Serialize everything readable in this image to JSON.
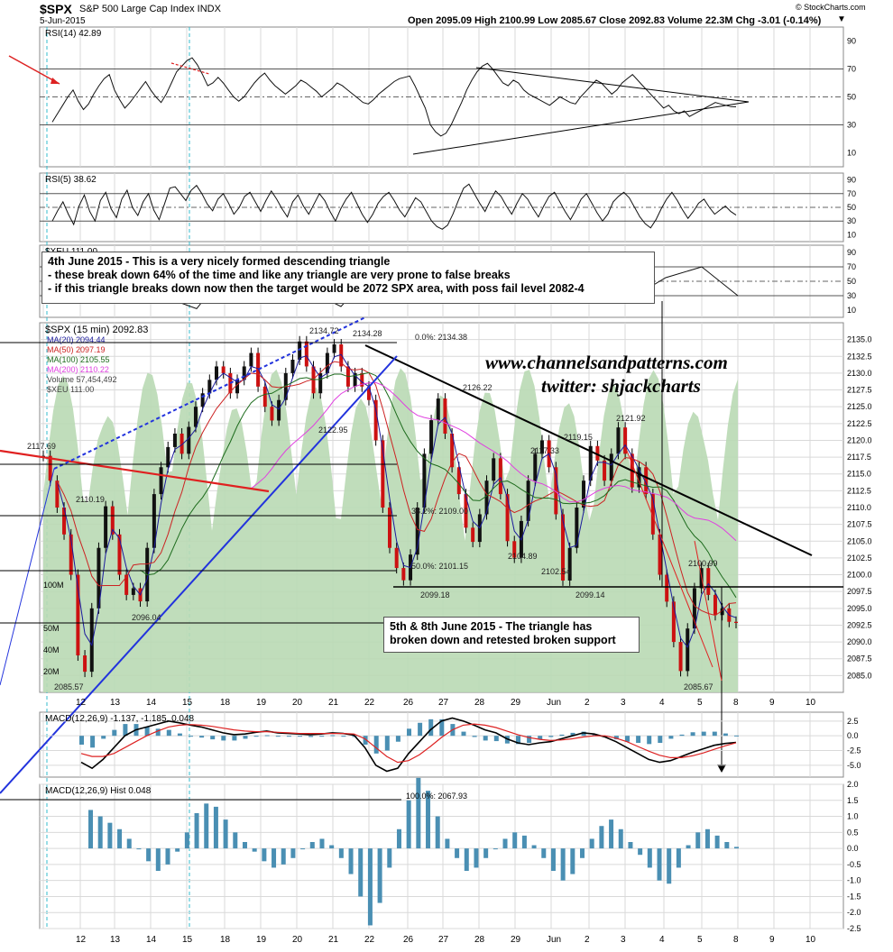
{
  "header": {
    "symbol": "$SPX",
    "name": "S&P 500 Large Cap Index INDX",
    "date": "5-Jun-2015",
    "quote": "Open 2095.09  High 2100.99  Low 2085.67  Close 2092.83  Volume 22.3M  Chg -3.01 (-0.14%)",
    "credit": "© StockCharts.com"
  },
  "watermark": {
    "site": "www.channelsandpatterns.com",
    "twitter": "twitter: shjackcharts"
  },
  "notes": {
    "top": {
      "line1": "4th June 2015 - This is a very nicely formed descending triangle",
      "line2": "- these break down 64% of the time and like any triangle are very prone to false breaks",
      "line3": "- if this triangle breaks down now then the target would be 2072 SPX area, with poss fail level 2082-4"
    },
    "bottom": {
      "line1": "5th & 8th June 2015 - The triangle has",
      "line2": "broken down and retested broken support"
    }
  },
  "colors": {
    "grid": "#d9d9d9",
    "panel_border": "#888888",
    "volume_fill": "#b9d9b4",
    "ma20": "#1a1a9c",
    "ma50": "#cc2222",
    "ma100": "#1d6b1d",
    "ma200": "#e040e0",
    "macd_hist": "#4a8fb3",
    "dashed_cyan": "#33bbcc"
  },
  "chart_data": [
    {
      "id": "rsi14",
      "type": "line",
      "title": "RSI(14) 42.89",
      "ylim": [
        0,
        100
      ],
      "y_ticks": [
        "10",
        "30",
        "50",
        "70",
        "90"
      ],
      "reference_lines": [
        30,
        50,
        70
      ],
      "last": 42.89,
      "values": [
        32,
        38,
        44,
        50,
        55,
        47,
        41,
        45,
        52,
        58,
        63,
        66,
        55,
        48,
        42,
        46,
        51,
        56,
        61,
        55,
        50,
        46,
        52,
        60,
        68,
        72,
        76,
        78,
        73,
        66,
        58,
        60,
        64,
        60,
        55,
        50,
        47,
        50,
        55,
        60,
        64,
        67,
        62,
        58,
        55,
        52,
        55,
        58,
        62,
        60,
        57,
        54,
        50,
        53,
        56,
        60,
        58,
        55,
        52,
        49,
        46,
        45,
        48,
        52,
        55,
        58,
        61,
        63,
        64,
        65,
        58,
        50,
        42,
        30,
        25,
        22,
        24,
        30,
        38,
        46,
        55,
        62,
        68,
        72,
        74,
        70,
        65,
        60,
        58,
        62,
        60,
        55,
        52,
        50,
        48,
        46,
        44,
        47,
        50,
        48,
        46,
        45,
        50,
        54,
        58,
        62,
        60,
        56,
        52,
        55,
        60,
        63,
        66,
        62,
        58,
        54,
        50,
        46,
        42,
        44,
        40,
        38,
        40,
        36,
        38,
        40,
        42,
        44,
        46,
        45,
        44,
        43,
        42.89
      ]
    },
    {
      "id": "rsi5",
      "type": "line",
      "title": "RSI(5) 38.62",
      "ylim": [
        0,
        100
      ],
      "y_ticks": [
        "10",
        "30",
        "50",
        "70",
        "90"
      ],
      "reference_lines": [
        30,
        50,
        70
      ],
      "last": 38.62,
      "values": [
        30,
        45,
        58,
        40,
        25,
        52,
        68,
        44,
        30,
        60,
        72,
        48,
        35,
        62,
        75,
        50,
        38,
        58,
        70,
        46,
        32,
        55,
        78,
        80,
        70,
        60,
        75,
        82,
        70,
        55,
        45,
        62,
        70,
        56,
        40,
        50,
        66,
        72,
        58,
        44,
        60,
        74,
        62,
        48,
        36,
        58,
        68,
        52,
        40,
        55,
        70,
        60,
        44,
        30,
        48,
        62,
        72,
        56,
        40,
        28,
        40,
        56,
        66,
        72,
        60,
        46,
        36,
        50,
        64,
        58,
        44,
        30,
        22,
        18,
        24,
        40,
        60,
        78,
        84,
        70,
        56,
        44,
        60,
        74,
        66,
        52,
        40,
        56,
        70,
        62,
        48,
        36,
        52,
        66,
        72,
        58,
        44,
        32,
        46,
        62,
        70,
        56,
        42,
        30,
        40,
        58,
        66,
        72,
        64,
        50,
        36,
        26,
        20,
        32,
        48,
        62,
        72,
        60,
        46,
        34,
        44,
        56,
        62,
        50,
        40,
        46,
        52,
        44,
        38.62
      ]
    },
    {
      "id": "xeu",
      "type": "line",
      "title": "$XEU 111.00",
      "ylim": [
        0,
        100
      ],
      "y_ticks": [
        "10",
        "30",
        "50",
        "70",
        "90"
      ],
      "reference_lines": [
        30,
        50,
        70
      ],
      "values": [
        20,
        60,
        88,
        30,
        12,
        75,
        90,
        40,
        15,
        70,
        85,
        35,
        20,
        65,
        80,
        45,
        25,
        55,
        70,
        30
      ]
    },
    {
      "id": "price",
      "type": "line",
      "title": "$SPX (15 min) 2092.83",
      "legend": [
        "MA(20) 2094.44",
        "MA(50) 2097.19",
        "MA(100) 2105.55",
        "MA(200) 2110.22",
        "Volume 57,454,492",
        "$XEU 111.00"
      ],
      "ylim": [
        2082.5,
        2137.5
      ],
      "y_ticks": [
        "2085.0",
        "2087.5",
        "2090.0",
        "2092.5",
        "2095.0",
        "2097.5",
        "2100.0",
        "2102.5",
        "2105.0",
        "2107.5",
        "2110.0",
        "2112.5",
        "2115.0",
        "2117.5",
        "2120.0",
        "2122.5",
        "2125.0",
        "2127.5",
        "2130.0",
        "2132.5",
        "2135.0"
      ],
      "x_ticks": [
        "12",
        "13",
        "14",
        "15",
        "18",
        "19",
        "20",
        "21",
        "22",
        "26",
        "27",
        "28",
        "29",
        "Jun",
        "2",
        "3",
        "4",
        "5",
        "8",
        "9",
        "10"
      ],
      "close": [
        2117.69,
        2114,
        2110,
        2106,
        2100,
        2088,
        2085.57,
        2095,
        2104,
        2110.19,
        2106,
        2100,
        2097,
        2098,
        2096.04,
        2104,
        2112,
        2116,
        2119,
        2121,
        2118,
        2122,
        2125,
        2127,
        2129,
        2131,
        2130,
        2127,
        2129,
        2131,
        2133,
        2128,
        2125,
        2122.95,
        2126,
        2130,
        2132,
        2134.72,
        2131,
        2127,
        2130,
        2133,
        2134.28,
        2131,
        2128,
        2130,
        2128,
        2126,
        2120,
        2110,
        2104,
        2101,
        2099.18,
        2103,
        2110,
        2118,
        2123,
        2126.22,
        2121,
        2116,
        2112,
        2107,
        2104.89,
        2109,
        2114,
        2117.33,
        2112,
        2105,
        2102.54,
        2108,
        2114,
        2118,
        2120,
        2116,
        2109,
        2099.14,
        2104,
        2110,
        2114,
        2119.15,
        2117,
        2114,
        2118,
        2121.92,
        2118,
        2113,
        2116,
        2112,
        2106,
        2100,
        2096,
        2090,
        2085.67,
        2092,
        2098,
        2100.99,
        2097,
        2094,
        2095,
        2093,
        2092.83
      ],
      "annotations": [
        "2117.69",
        "2110.19",
        "2096.04",
        "2085.57",
        "2134.72",
        "2134.28",
        "2122.95",
        "0.0%: 2134.38",
        "2126.22",
        "2117.33",
        "2104.89",
        "2102.54",
        "2119.15",
        "2121.92",
        "2100.99",
        "2099.18",
        "2099.14",
        "2085.67",
        "38.2%: 2109.00",
        "50.0%: 2101.15"
      ],
      "volume_axis": [
        "20M",
        "40M",
        "50M",
        "100M"
      ]
    },
    {
      "id": "macd",
      "type": "line",
      "title": "MACD(12,26,9) -1.137, -1.185, 0.048",
      "ylim": [
        -7,
        4
      ],
      "y_ticks": [
        "2.5",
        "0.0",
        "-2.5",
        "-5.0"
      ],
      "macd": [
        -4.5,
        -5.5,
        -4,
        -2,
        0,
        1,
        1.5,
        2,
        2.5,
        2.2,
        1.8,
        1.5,
        1,
        0.5,
        0.2,
        0.3,
        0.6,
        0.8,
        0.5,
        0.4,
        0.3,
        0.2,
        0.3,
        0.5,
        0.4,
        0.1,
        -2,
        -5,
        -6,
        -5.5,
        -3,
        -1,
        1,
        2.5,
        3,
        2.5,
        1.8,
        1,
        0.5,
        -0.5,
        -1.2,
        -1.5,
        -1.2,
        -1,
        -0.5,
        0,
        0.5,
        0.3,
        -0.2,
        -1,
        -2,
        -3,
        -4,
        -4.5,
        -4.2,
        -3.5,
        -2.8,
        -2.2,
        -1.6,
        -1.3,
        -1.137
      ],
      "signal": [
        -3,
        -3.5,
        -3.5,
        -3,
        -2,
        -1,
        0,
        0.8,
        1.5,
        1.8,
        1.9,
        1.8,
        1.6,
        1.3,
        1,
        0.8,
        0.7,
        0.7,
        0.6,
        0.5,
        0.4,
        0.4,
        0.4,
        0.4,
        0.4,
        0.3,
        -0.5,
        -2,
        -3.5,
        -4.5,
        -4.2,
        -3.2,
        -1.8,
        -0.3,
        1,
        1.8,
        2,
        1.8,
        1.4,
        0.8,
        0.2,
        -0.3,
        -0.6,
        -0.8,
        -0.7,
        -0.5,
        -0.2,
        0,
        0,
        -0.4,
        -1,
        -1.8,
        -2.6,
        -3.3,
        -3.7,
        -3.7,
        -3.4,
        -2.9,
        -2.3,
        -1.7,
        -1.185
      ],
      "histogram": [
        -1.5,
        -2,
        -0.5,
        1,
        2,
        2,
        1.5,
        1.2,
        1,
        0.4,
        -0.1,
        -0.3,
        -0.6,
        -0.8,
        -0.8,
        -0.5,
        -0.1,
        0.1,
        -0.1,
        -0.1,
        -0.1,
        -0.2,
        -0.1,
        0.1,
        0,
        -0.2,
        -1.5,
        -3,
        -2.5,
        -1,
        1.2,
        2.2,
        2.8,
        2.8,
        2,
        0.7,
        -0.2,
        -0.8,
        -0.9,
        -1.3,
        -1.4,
        -1.2,
        -0.6,
        -0.2,
        0.2,
        0.5,
        0.7,
        0.3,
        -0.2,
        -0.6,
        -1,
        -1.2,
        -1.4,
        -1.2,
        -0.5,
        0.2,
        0.6,
        0.7,
        0.7,
        0.4,
        0.048
      ]
    },
    {
      "id": "macd_hist",
      "type": "bar",
      "title": "MACD(12,26,9) Hist 0.048",
      "ylim": [
        -2.5,
        2.0
      ],
      "y_ticks": [
        "2.0",
        "1.5",
        "1.0",
        "0.5",
        "0.0",
        "-0.5",
        "-1.0",
        "-1.5",
        "-2.0",
        "-2.5"
      ],
      "fib_label": "100.0%: 2067.93",
      "values": [
        1.2,
        1.0,
        0.8,
        0.6,
        0.3,
        0.0,
        -0.4,
        -0.7,
        -0.5,
        -0.1,
        0.5,
        1.1,
        1.4,
        1.3,
        0.9,
        0.5,
        0.2,
        -0.1,
        -0.4,
        -0.6,
        -0.5,
        -0.3,
        0.0,
        0.2,
        0.3,
        0.1,
        -0.3,
        -0.8,
        -1.5,
        -2.4,
        -1.7,
        -0.6,
        0.6,
        1.5,
        2.2,
        1.8,
        1.0,
        0.3,
        -0.3,
        -0.7,
        -0.6,
        -0.3,
        0.0,
        0.3,
        0.5,
        0.4,
        0.1,
        -0.3,
        -0.7,
        -1.0,
        -0.8,
        -0.3,
        0.3,
        0.7,
        0.9,
        0.6,
        0.2,
        -0.2,
        -0.6,
        -1.0,
        -1.1,
        -0.6,
        0.1,
        0.5,
        0.6,
        0.4,
        0.2,
        0.048
      ]
    }
  ]
}
